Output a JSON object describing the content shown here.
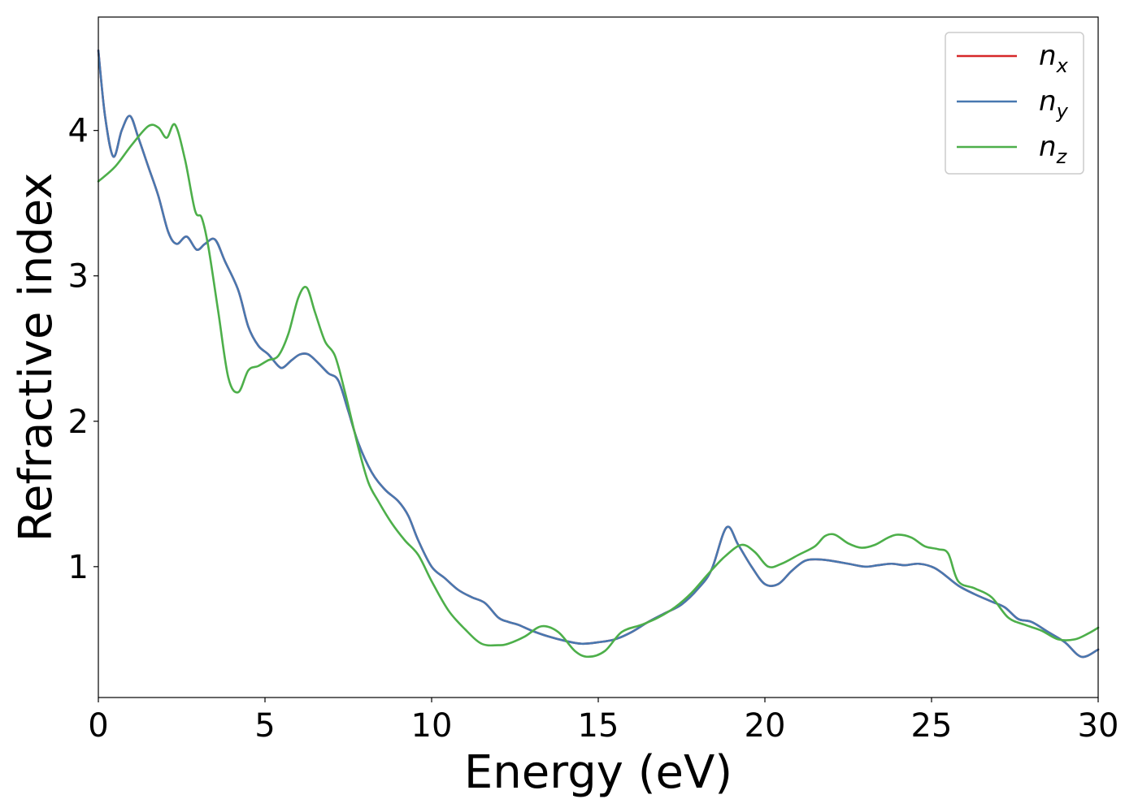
{
  "chart_data": {
    "type": "line",
    "title": "",
    "xlabel": "Energy (eV)",
    "ylabel": "Refractive index",
    "xlim": [
      0,
      30
    ],
    "ylim": [
      0.1,
      4.78
    ],
    "xticks": [
      0,
      5,
      10,
      15,
      20,
      25,
      30
    ],
    "xtick_labels": [
      "0",
      "5",
      "10",
      "15",
      "20",
      "25",
      "30"
    ],
    "yticks": [
      1,
      2,
      3,
      4
    ],
    "ytick_labels": [
      "1",
      "2",
      "3",
      "4"
    ],
    "grid": false,
    "legend_position": "top-right",
    "series": [
      {
        "name": "n_x",
        "label_base": "n",
        "label_sub": "x",
        "color": "#d62728",
        "x": [
          0,
          0.2,
          0.45,
          0.7,
          0.95,
          1.2,
          1.5,
          1.8,
          2.1,
          2.35,
          2.65,
          2.95,
          3.2,
          3.5,
          3.8,
          4.2,
          4.5,
          4.8,
          5.1,
          5.4,
          5.55,
          5.8,
          6.05,
          6.3,
          6.6,
          6.9,
          7.2,
          7.5,
          7.8,
          8.2,
          8.6,
          9.0,
          9.3,
          9.6,
          10.0,
          10.4,
          10.8,
          11.2,
          11.6,
          12.0,
          12.3,
          12.6,
          13.0,
          13.5,
          14.0,
          14.5,
          15.0,
          15.5,
          16.0,
          16.5,
          17.0,
          17.5,
          18.0,
          18.4,
          18.85,
          19.2,
          19.6,
          20.0,
          20.4,
          20.8,
          21.2,
          21.6,
          22.0,
          22.5,
          23.0,
          23.4,
          23.8,
          24.2,
          24.6,
          25.0,
          25.3,
          25.8,
          26.3,
          26.8,
          27.2,
          27.6,
          28.0,
          28.5,
          29.0,
          29.5,
          30.0
        ],
        "y": [
          4.55,
          4.1,
          3.82,
          4.0,
          4.1,
          3.95,
          3.75,
          3.55,
          3.3,
          3.22,
          3.27,
          3.18,
          3.22,
          3.25,
          3.1,
          2.9,
          2.65,
          2.52,
          2.46,
          2.38,
          2.37,
          2.42,
          2.46,
          2.46,
          2.4,
          2.33,
          2.28,
          2.07,
          1.85,
          1.65,
          1.53,
          1.45,
          1.35,
          1.18,
          1.0,
          0.92,
          0.84,
          0.79,
          0.75,
          0.65,
          0.62,
          0.6,
          0.56,
          0.52,
          0.49,
          0.47,
          0.48,
          0.5,
          0.55,
          0.62,
          0.68,
          0.74,
          0.85,
          0.98,
          1.27,
          1.15,
          1.0,
          0.88,
          0.88,
          0.97,
          1.04,
          1.05,
          1.04,
          1.02,
          1.0,
          1.01,
          1.02,
          1.01,
          1.02,
          1.0,
          0.96,
          0.87,
          0.81,
          0.76,
          0.72,
          0.64,
          0.62,
          0.55,
          0.48,
          0.38,
          0.43
        ]
      },
      {
        "name": "n_y",
        "label_base": "n",
        "label_sub": "y",
        "color": "#4878b0",
        "x": [
          0,
          0.2,
          0.45,
          0.7,
          0.95,
          1.2,
          1.5,
          1.8,
          2.1,
          2.35,
          2.65,
          2.95,
          3.2,
          3.5,
          3.8,
          4.2,
          4.5,
          4.8,
          5.1,
          5.4,
          5.55,
          5.8,
          6.05,
          6.3,
          6.6,
          6.9,
          7.2,
          7.5,
          7.8,
          8.2,
          8.6,
          9.0,
          9.3,
          9.6,
          10.0,
          10.4,
          10.8,
          11.2,
          11.6,
          12.0,
          12.3,
          12.6,
          13.0,
          13.5,
          14.0,
          14.5,
          15.0,
          15.5,
          16.0,
          16.5,
          17.0,
          17.5,
          18.0,
          18.4,
          18.85,
          19.2,
          19.6,
          20.0,
          20.4,
          20.8,
          21.2,
          21.6,
          22.0,
          22.5,
          23.0,
          23.4,
          23.8,
          24.2,
          24.6,
          25.0,
          25.3,
          25.8,
          26.3,
          26.8,
          27.2,
          27.6,
          28.0,
          28.5,
          29.0,
          29.5,
          30.0
        ],
        "y": [
          4.55,
          4.1,
          3.82,
          4.0,
          4.1,
          3.95,
          3.75,
          3.55,
          3.3,
          3.22,
          3.27,
          3.18,
          3.22,
          3.25,
          3.1,
          2.9,
          2.65,
          2.52,
          2.46,
          2.38,
          2.37,
          2.42,
          2.46,
          2.46,
          2.4,
          2.33,
          2.28,
          2.07,
          1.85,
          1.65,
          1.53,
          1.45,
          1.35,
          1.18,
          1.0,
          0.92,
          0.84,
          0.79,
          0.75,
          0.65,
          0.62,
          0.6,
          0.56,
          0.52,
          0.49,
          0.47,
          0.48,
          0.5,
          0.55,
          0.62,
          0.68,
          0.74,
          0.85,
          0.98,
          1.27,
          1.15,
          1.0,
          0.88,
          0.88,
          0.97,
          1.04,
          1.05,
          1.04,
          1.02,
          1.0,
          1.01,
          1.02,
          1.01,
          1.02,
          1.0,
          0.96,
          0.87,
          0.81,
          0.76,
          0.72,
          0.64,
          0.62,
          0.55,
          0.48,
          0.38,
          0.43
        ]
      },
      {
        "name": "n_z",
        "label_base": "n",
        "label_sub": "z",
        "color": "#4daf4a",
        "x": [
          0,
          0.5,
          1.0,
          1.5,
          1.8,
          2.05,
          2.3,
          2.6,
          2.9,
          3.1,
          3.3,
          3.6,
          3.9,
          4.2,
          4.5,
          4.8,
          5.1,
          5.4,
          5.7,
          6.0,
          6.25,
          6.5,
          6.8,
          7.1,
          7.4,
          7.8,
          8.1,
          8.4,
          8.8,
          9.2,
          9.6,
          10.0,
          10.5,
          11.0,
          11.5,
          12.0,
          12.3,
          12.8,
          13.3,
          13.8,
          14.3,
          14.7,
          15.2,
          15.7,
          16.3,
          16.8,
          17.3,
          17.8,
          18.3,
          18.8,
          19.3,
          19.7,
          20.1,
          20.5,
          21.0,
          21.5,
          21.8,
          22.1,
          22.5,
          22.9,
          23.3,
          23.7,
          24.0,
          24.4,
          24.8,
          25.2,
          25.5,
          25.8,
          26.3,
          26.8,
          27.3,
          27.8,
          28.3,
          28.8,
          29.3,
          29.7,
          30.0
        ],
        "y": [
          3.65,
          3.75,
          3.9,
          4.03,
          4.02,
          3.95,
          4.04,
          3.8,
          3.45,
          3.4,
          3.2,
          2.75,
          2.3,
          2.2,
          2.35,
          2.38,
          2.42,
          2.45,
          2.6,
          2.85,
          2.92,
          2.75,
          2.55,
          2.45,
          2.2,
          1.82,
          1.58,
          1.45,
          1.3,
          1.18,
          1.08,
          0.9,
          0.7,
          0.57,
          0.47,
          0.46,
          0.47,
          0.52,
          0.59,
          0.55,
          0.42,
          0.38,
          0.42,
          0.55,
          0.6,
          0.65,
          0.72,
          0.82,
          0.95,
          1.07,
          1.15,
          1.1,
          1.0,
          1.02,
          1.08,
          1.14,
          1.21,
          1.22,
          1.16,
          1.13,
          1.15,
          1.2,
          1.22,
          1.2,
          1.14,
          1.12,
          1.09,
          0.9,
          0.85,
          0.79,
          0.65,
          0.6,
          0.56,
          0.5,
          0.5,
          0.54,
          0.58
        ]
      }
    ]
  }
}
